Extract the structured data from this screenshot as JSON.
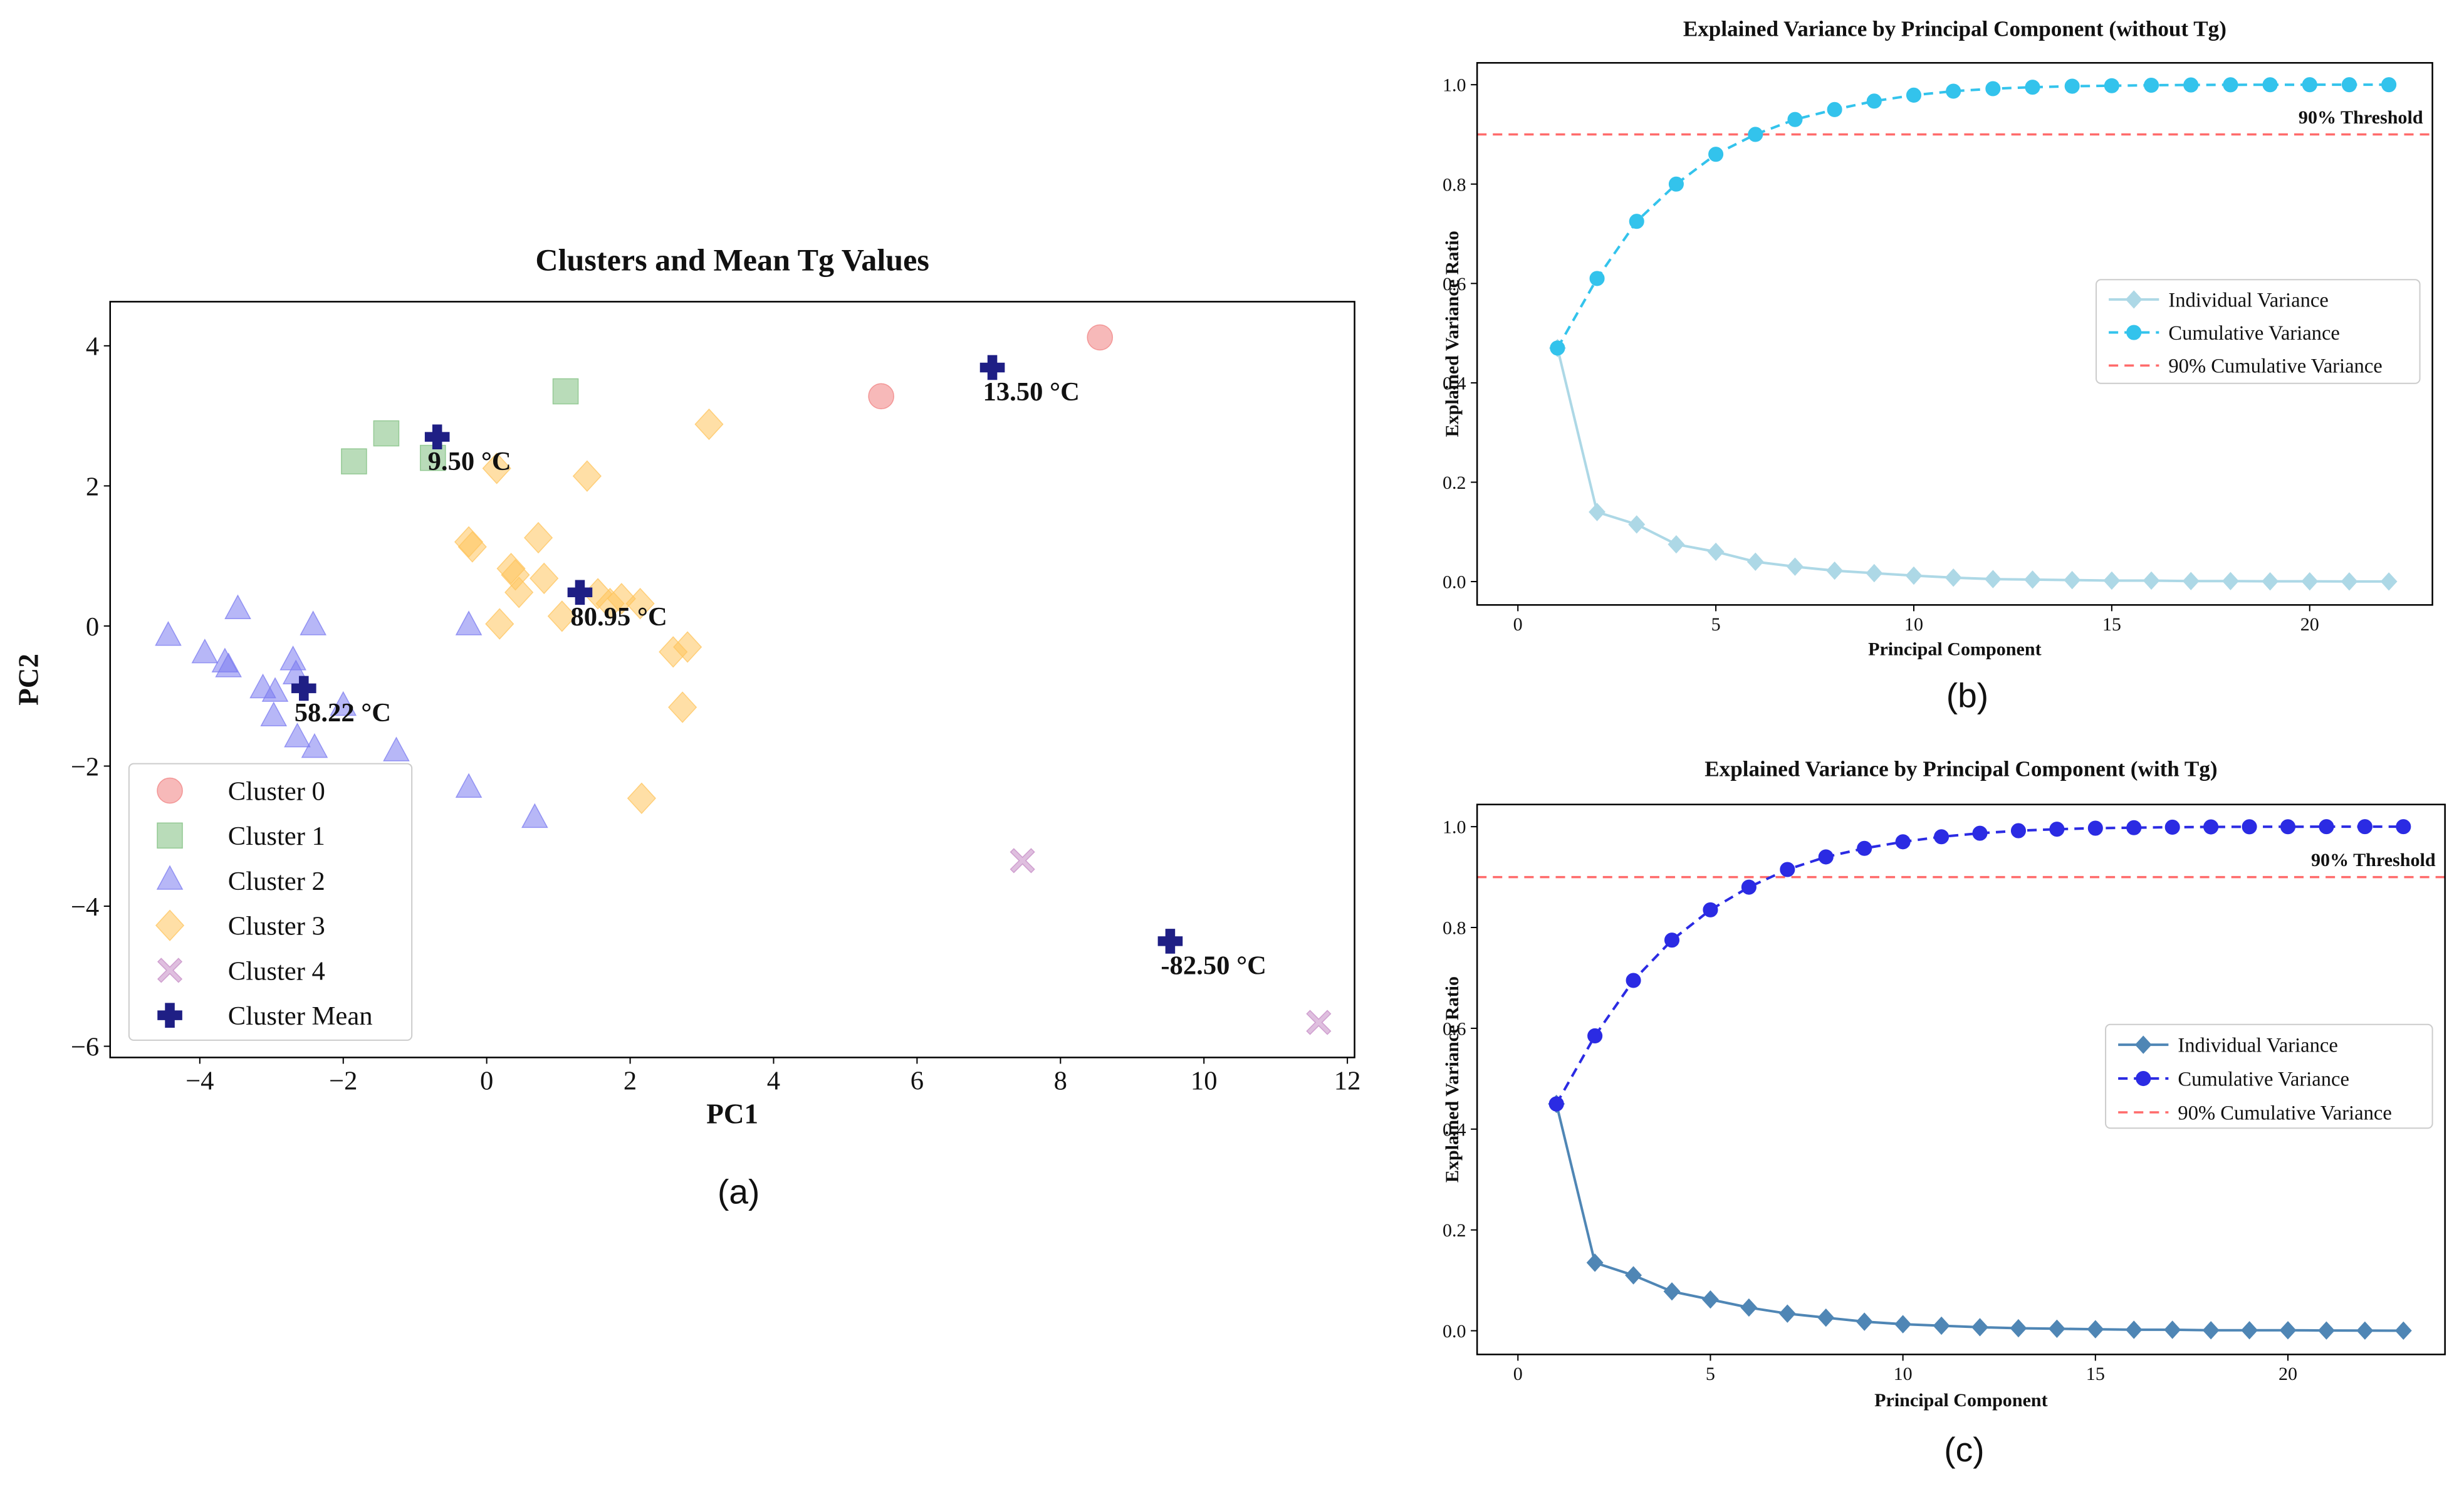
{
  "chart_data": [
    {
      "type": "scatter",
      "title": "Clusters and Mean Tg Values",
      "x_label": "PC1",
      "y_label": "PC2",
      "caption": "(a)",
      "xlim": [
        -5.25,
        12.1
      ],
      "ylim": [
        -6.16,
        4.63
      ],
      "xticks": [
        {
          "value": -4,
          "label": "−4"
        },
        {
          "value": -2,
          "label": "−2"
        },
        0,
        2,
        4,
        6,
        8,
        10,
        12
      ],
      "yticks": [
        {
          "value": -6,
          "label": "−6"
        },
        {
          "value": -4,
          "label": "−4"
        },
        {
          "value": -2,
          "label": "−2"
        },
        0,
        2,
        4
      ],
      "legend": "lower left",
      "series": [
        {
          "name": "Cluster 0",
          "color": "#f08080",
          "marker": "circle",
          "x": [
            5.5,
            8.55
          ],
          "y": [
            3.28,
            4.12
          ]
        },
        {
          "name": "Cluster 1",
          "color": "#7fbf7f",
          "marker": "square",
          "x": [
            -1.85,
            -1.4,
            1.1,
            -0.75
          ],
          "y": [
            2.35,
            2.75,
            3.35,
            2.4
          ]
        },
        {
          "name": "Cluster 2",
          "color": "#7b7bf0",
          "marker": "triangle",
          "x": [
            -4.44,
            -3.93,
            -3.65,
            -3.6,
            -3.47,
            -3.12,
            -2.95,
            -2.97,
            -2.7,
            -2.66,
            -2.64,
            -2.42,
            -2.4,
            -2.0,
            -1.26,
            -0.25,
            -0.25,
            0.67
          ],
          "y": [
            -0.15,
            -0.4,
            -0.53,
            -0.6,
            0.23,
            -0.9,
            -0.95,
            -1.3,
            -0.5,
            -0.7,
            -1.6,
            0.0,
            -1.75,
            -1.15,
            -1.8,
            0.0,
            -2.32,
            -2.75
          ]
        },
        {
          "name": "Cluster 3",
          "color": "#ffc45c",
          "marker": "diamond",
          "x": [
            -0.25,
            -0.2,
            0.14,
            1.4,
            3.1,
            0.72,
            0.34,
            0.4,
            0.45,
            0.8,
            0.18,
            1.05,
            1.55,
            1.72,
            1.88,
            2.14,
            2.6,
            2.8,
            2.73,
            2.16
          ],
          "y": [
            1.2,
            1.13,
            2.25,
            2.14,
            2.88,
            1.26,
            0.82,
            0.73,
            0.48,
            0.68,
            0.03,
            0.14,
            0.46,
            0.32,
            0.39,
            0.32,
            -0.37,
            -0.3,
            -1.16,
            -2.46
          ]
        },
        {
          "name": "Cluster 4",
          "color": "#c58bc5",
          "marker": "x",
          "x": [
            7.47,
            11.6
          ],
          "y": [
            -3.35,
            -5.66
          ]
        },
        {
          "name": "Cluster Mean",
          "color": "#1f1f85",
          "marker": "plus",
          "x": [
            7.05,
            -0.69,
            1.3,
            -2.55,
            9.53
          ],
          "y": [
            3.69,
            2.7,
            0.48,
            -0.89,
            -4.5
          ]
        }
      ],
      "annotations": [
        "13.50 °C",
        "9.50 °C",
        "80.95 °C",
        "58.22 °C",
        "-82.50 °C"
      ]
    },
    {
      "type": "line",
      "title": "Explained Variance by Principal Component (without Tg)",
      "x_label": "Principal Component",
      "y_label": "Explained Variance Ratio",
      "caption": "(b)",
      "xlim": [
        -1.03,
        23.1
      ],
      "ylim": [
        -0.047,
        1.044
      ],
      "xticks": [
        0,
        5,
        10,
        15,
        20
      ],
      "yticks": [
        {
          "value": 0,
          "label": "0.0"
        },
        0.2,
        0.4,
        0.6,
        0.8,
        {
          "value": 1,
          "label": "1.0"
        }
      ],
      "legend": "center right",
      "x": [
        1,
        2,
        3,
        4,
        5,
        6,
        7,
        8,
        9,
        10,
        11,
        12,
        13,
        14,
        15,
        16,
        17,
        18,
        19,
        20,
        21,
        22
      ],
      "series": [
        {
          "name": "Individual Variance",
          "color": "#add8e6",
          "marker": "diamond",
          "linestyle": "solid",
          "values": [
            0.47,
            0.14,
            0.115,
            0.075,
            0.06,
            0.04,
            0.03,
            0.022,
            0.017,
            0.012,
            0.008,
            0.005,
            0.004,
            0.003,
            0.002,
            0.002,
            0.001,
            0.001,
            0.0005,
            0.0005,
            0.0003,
            0.0002
          ]
        },
        {
          "name": "Cumulative Variance",
          "color": "#33c3ec",
          "marker": "circle",
          "linestyle": "dashed",
          "values": [
            0.47,
            0.61,
            0.725,
            0.8,
            0.86,
            0.9,
            0.93,
            0.95,
            0.967,
            0.979,
            0.987,
            0.992,
            0.995,
            0.997,
            0.998,
            0.999,
            0.9995,
            0.9998,
            0.9999,
            1.0,
            1.0,
            1.0
          ]
        }
      ],
      "threshold": 0.9,
      "threshold_color": "#ff6b6b",
      "threshold_name": "90% Cumulative Variance",
      "threshold_text": "90% Threshold"
    },
    {
      "type": "line",
      "title": "Explained Variance by Principal Component (with Tg)",
      "x_label": "Principal Component",
      "y_label": "Explained Variance Ratio",
      "caption": "(c)",
      "xlim": [
        -1.06,
        24.08
      ],
      "ylim": [
        -0.047,
        1.044
      ],
      "xticks": [
        0,
        5,
        10,
        15,
        20
      ],
      "yticks": [
        {
          "value": 0,
          "label": "0.0"
        },
        0.2,
        0.4,
        0.6,
        0.8,
        {
          "value": 1,
          "label": "1.0"
        }
      ],
      "legend": "center right",
      "x": [
        1,
        2,
        3,
        4,
        5,
        6,
        7,
        8,
        9,
        10,
        11,
        12,
        13,
        14,
        15,
        16,
        17,
        18,
        19,
        20,
        21,
        22,
        23
      ],
      "series": [
        {
          "name": "Individual Variance",
          "color": "#4f86b5",
          "marker": "diamond",
          "linestyle": "solid",
          "values": [
            0.45,
            0.135,
            0.11,
            0.078,
            0.062,
            0.046,
            0.034,
            0.026,
            0.018,
            0.013,
            0.01,
            0.007,
            0.005,
            0.004,
            0.003,
            0.002,
            0.002,
            0.001,
            0.001,
            0.001,
            0.0005,
            0.0003,
            0.0002
          ]
        },
        {
          "name": "Cumulative Variance",
          "color": "#2b2be3",
          "marker": "circle",
          "linestyle": "dashed",
          "values": [
            0.45,
            0.585,
            0.695,
            0.775,
            0.835,
            0.88,
            0.915,
            0.94,
            0.957,
            0.97,
            0.98,
            0.987,
            0.992,
            0.995,
            0.997,
            0.998,
            0.999,
            0.9995,
            0.9998,
            0.9999,
            1.0,
            1.0,
            1.0
          ]
        }
      ],
      "threshold": 0.9,
      "threshold_color": "#ff6b6b",
      "threshold_name": "90% Cumulative Variance",
      "threshold_text": "90% Threshold"
    }
  ]
}
